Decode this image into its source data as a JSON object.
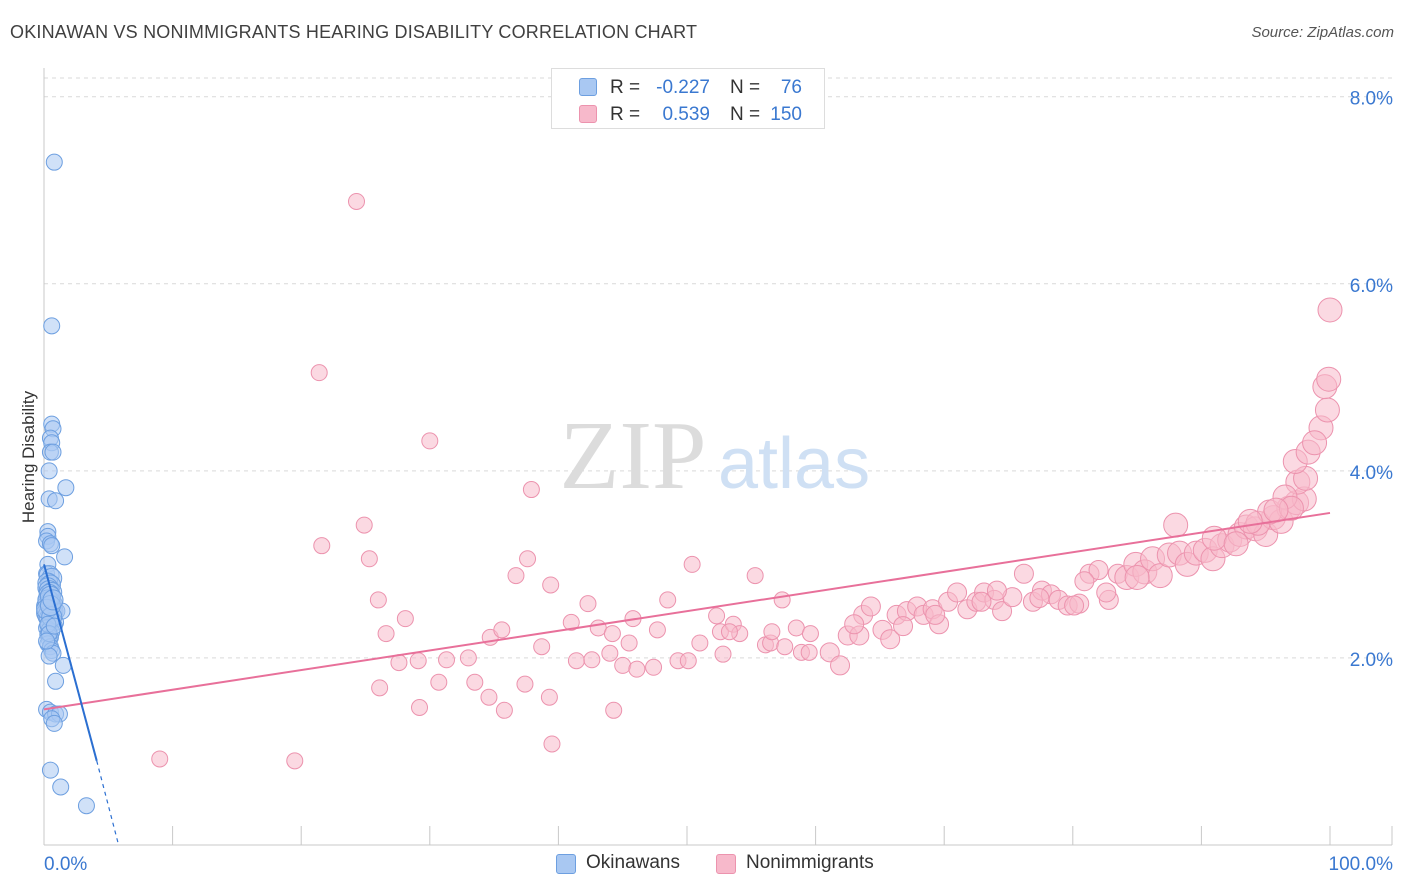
{
  "header": {
    "title": "OKINAWAN VS NONIMMIGRANTS HEARING DISABILITY CORRELATION CHART",
    "source": "Source: ZipAtlas.com"
  },
  "watermark": {
    "zip": "ZIP",
    "atlas": "atlas"
  },
  "legend": {
    "rows": [
      {
        "series": "Okinawans",
        "r_label": "R =",
        "r_value": "-0.227",
        "n_label": "N =",
        "n_value": "76"
      },
      {
        "series": "Nonimmigrants",
        "r_label": "R =",
        "r_value": "0.539",
        "n_label": "N =",
        "n_value": "150"
      }
    ]
  },
  "colors": {
    "okinawans_fill": "#a9c8f2",
    "okinawans_stroke": "#6d9fe0",
    "okinawans_line": "#2b6fd1",
    "nonimmigrants_fill": "#f7b9cb",
    "nonimmigrants_stroke": "#ec93ae",
    "nonimmigrants_line": "#e8709a",
    "axis_label": "#3a78d0",
    "grid": "#d9d9d9"
  },
  "chart_data": {
    "type": "scatter",
    "title": "OKINAWAN VS NONIMMIGRANTS HEARING DISABILITY CORRELATION CHART",
    "xlabel": "",
    "ylabel": "Hearing Disability",
    "xlim": [
      0,
      100
    ],
    "ylim": [
      0,
      8.2
    ],
    "x_tick_labels": {
      "min": "0.0%",
      "max": "100.0%"
    },
    "y_ticks": [
      {
        "value": 2.0,
        "label": "2.0%"
      },
      {
        "value": 4.0,
        "label": "4.0%"
      },
      {
        "value": 6.0,
        "label": "6.0%"
      },
      {
        "value": 8.0,
        "label": "8.0%"
      }
    ],
    "grid": true,
    "legend_position": "top-center",
    "series": [
      {
        "name": "Okinawans",
        "R": -0.227,
        "N": 76,
        "trend": {
          "x0": 0.0,
          "y0": 3.0,
          "x1": 4.1,
          "y1": 0.9,
          "dash_to_x": 5.8,
          "dash_to_y": 0.0
        },
        "points": [
          [
            0.8,
            7.3
          ],
          [
            0.6,
            5.55
          ],
          [
            0.6,
            4.5
          ],
          [
            0.7,
            4.45
          ],
          [
            0.5,
            4.35
          ],
          [
            0.6,
            4.3
          ],
          [
            0.5,
            4.2
          ],
          [
            0.7,
            4.2
          ],
          [
            0.4,
            4.0
          ],
          [
            1.7,
            3.82
          ],
          [
            0.4,
            3.7
          ],
          [
            0.9,
            3.68
          ],
          [
            0.3,
            3.35
          ],
          [
            0.3,
            3.3
          ],
          [
            0.2,
            3.25
          ],
          [
            0.5,
            3.22
          ],
          [
            0.6,
            3.2
          ],
          [
            1.6,
            3.08
          ],
          [
            0.3,
            3.0
          ],
          [
            0.2,
            2.9
          ],
          [
            0.4,
            2.88
          ],
          [
            0.6,
            2.85
          ],
          [
            0.3,
            2.8
          ],
          [
            0.5,
            2.78
          ],
          [
            0.3,
            2.75
          ],
          [
            0.4,
            2.72
          ],
          [
            0.6,
            2.7
          ],
          [
            0.4,
            2.68
          ],
          [
            0.3,
            2.6
          ],
          [
            0.5,
            2.6
          ],
          [
            0.8,
            2.58
          ],
          [
            0.2,
            2.55
          ],
          [
            0.4,
            2.52
          ],
          [
            0.6,
            2.5
          ],
          [
            0.7,
            2.5
          ],
          [
            1.0,
            2.5
          ],
          [
            1.4,
            2.5
          ],
          [
            0.2,
            2.48
          ],
          [
            0.3,
            2.45
          ],
          [
            0.4,
            2.42
          ],
          [
            0.5,
            2.4
          ],
          [
            0.7,
            2.4
          ],
          [
            0.9,
            2.38
          ],
          [
            0.3,
            2.35
          ],
          [
            0.2,
            2.32
          ],
          [
            0.4,
            2.3
          ],
          [
            0.6,
            2.28
          ],
          [
            0.3,
            2.25
          ],
          [
            0.5,
            2.22
          ],
          [
            0.4,
            2.2
          ],
          [
            0.3,
            2.15
          ],
          [
            0.5,
            2.12
          ],
          [
            0.6,
            2.08
          ],
          [
            0.7,
            2.05
          ],
          [
            0.4,
            2.02
          ],
          [
            1.5,
            1.92
          ],
          [
            0.9,
            1.75
          ],
          [
            0.2,
            1.45
          ],
          [
            0.5,
            1.42
          ],
          [
            0.9,
            1.4
          ],
          [
            1.2,
            1.4
          ],
          [
            0.6,
            1.35
          ],
          [
            0.8,
            1.3
          ],
          [
            0.5,
            0.8
          ],
          [
            1.3,
            0.62
          ],
          [
            3.3,
            0.42
          ],
          [
            0.3,
            2.62
          ],
          [
            0.5,
            2.66
          ],
          [
            0.2,
            2.52
          ],
          [
            0.6,
            2.44
          ],
          [
            0.3,
            2.36
          ],
          [
            0.4,
            2.26
          ],
          [
            0.8,
            2.34
          ],
          [
            0.2,
            2.18
          ],
          [
            0.5,
            2.56
          ],
          [
            0.7,
            2.62
          ]
        ]
      },
      {
        "name": "Nonimmigrants",
        "R": 0.539,
        "N": 150,
        "trend": {
          "x0": 0.0,
          "y0": 1.45,
          "x1": 100.0,
          "y1": 3.55
        },
        "points": [
          [
            24.3,
            6.88
          ],
          [
            21.4,
            5.05
          ],
          [
            30.0,
            4.32
          ],
          [
            37.9,
            3.8
          ],
          [
            24.9,
            3.42
          ],
          [
            21.6,
            3.2
          ],
          [
            25.3,
            3.06
          ],
          [
            37.6,
            3.06
          ],
          [
            50.4,
            3.0
          ],
          [
            55.3,
            2.88
          ],
          [
            36.7,
            2.88
          ],
          [
            39.4,
            2.78
          ],
          [
            26.0,
            2.62
          ],
          [
            42.3,
            2.58
          ],
          [
            48.5,
            2.62
          ],
          [
            57.4,
            2.62
          ],
          [
            28.1,
            2.42
          ],
          [
            45.8,
            2.42
          ],
          [
            52.3,
            2.45
          ],
          [
            26.6,
            2.26
          ],
          [
            34.7,
            2.22
          ],
          [
            35.6,
            2.3
          ],
          [
            41.0,
            2.38
          ],
          [
            43.1,
            2.32
          ],
          [
            44.2,
            2.26
          ],
          [
            47.7,
            2.3
          ],
          [
            52.6,
            2.28
          ],
          [
            53.6,
            2.36
          ],
          [
            54.1,
            2.26
          ],
          [
            58.5,
            2.32
          ],
          [
            59.6,
            2.26
          ],
          [
            38.7,
            2.12
          ],
          [
            45.5,
            2.16
          ],
          [
            51.0,
            2.16
          ],
          [
            52.8,
            2.04
          ],
          [
            56.1,
            2.14
          ],
          [
            56.5,
            2.16
          ],
          [
            57.6,
            2.12
          ],
          [
            58.9,
            2.06
          ],
          [
            62.5,
            2.24
          ],
          [
            63.4,
            2.24
          ],
          [
            27.6,
            1.95
          ],
          [
            29.1,
            1.97
          ],
          [
            31.3,
            1.98
          ],
          [
            33.0,
            2.0
          ],
          [
            41.4,
            1.97
          ],
          [
            42.6,
            1.98
          ],
          [
            44.0,
            2.05
          ],
          [
            45.0,
            1.92
          ],
          [
            46.1,
            1.88
          ],
          [
            47.4,
            1.9
          ],
          [
            49.3,
            1.97
          ],
          [
            50.1,
            1.97
          ],
          [
            53.3,
            2.28
          ],
          [
            56.6,
            2.28
          ],
          [
            59.5,
            2.06
          ],
          [
            61.1,
            2.06
          ],
          [
            61.9,
            1.92
          ],
          [
            26.1,
            1.68
          ],
          [
            30.7,
            1.74
          ],
          [
            33.5,
            1.74
          ],
          [
            37.4,
            1.72
          ],
          [
            39.3,
            1.58
          ],
          [
            34.6,
            1.58
          ],
          [
            29.2,
            1.47
          ],
          [
            35.8,
            1.44
          ],
          [
            44.3,
            1.44
          ],
          [
            39.5,
            1.08
          ],
          [
            9.0,
            0.92
          ],
          [
            19.5,
            0.9
          ],
          [
            63.7,
            2.46
          ],
          [
            63.0,
            2.36
          ],
          [
            64.3,
            2.55
          ],
          [
            65.2,
            2.3
          ],
          [
            65.8,
            2.2
          ],
          [
            66.3,
            2.46
          ],
          [
            67.1,
            2.5
          ],
          [
            67.9,
            2.55
          ],
          [
            68.4,
            2.46
          ],
          [
            69.1,
            2.52
          ],
          [
            69.6,
            2.36
          ],
          [
            70.3,
            2.6
          ],
          [
            71.0,
            2.7
          ],
          [
            71.8,
            2.52
          ],
          [
            72.5,
            2.6
          ],
          [
            73.1,
            2.7
          ],
          [
            73.9,
            2.62
          ],
          [
            74.5,
            2.5
          ],
          [
            75.3,
            2.65
          ],
          [
            76.2,
            2.9
          ],
          [
            76.9,
            2.6
          ],
          [
            77.6,
            2.72
          ],
          [
            78.3,
            2.68
          ],
          [
            78.9,
            2.62
          ],
          [
            79.6,
            2.56
          ],
          [
            80.5,
            2.58
          ],
          [
            81.3,
            2.9
          ],
          [
            82.0,
            2.94
          ],
          [
            82.8,
            2.62
          ],
          [
            83.5,
            2.9
          ],
          [
            84.2,
            2.86
          ],
          [
            84.9,
            3.0
          ],
          [
            85.6,
            2.92
          ],
          [
            86.2,
            3.06
          ],
          [
            86.8,
            2.88
          ],
          [
            87.5,
            3.1
          ],
          [
            88.3,
            3.12
          ],
          [
            88.9,
            3.0
          ],
          [
            89.6,
            3.12
          ],
          [
            90.3,
            3.15
          ],
          [
            90.9,
            3.06
          ],
          [
            91.6,
            3.2
          ],
          [
            92.2,
            3.26
          ],
          [
            93.0,
            3.32
          ],
          [
            93.5,
            3.4
          ],
          [
            94.2,
            3.38
          ],
          [
            95.0,
            3.32
          ],
          [
            95.6,
            3.5
          ],
          [
            96.2,
            3.46
          ],
          [
            96.8,
            3.6
          ],
          [
            97.4,
            3.66
          ],
          [
            98.0,
            3.7
          ],
          [
            94.4,
            3.44
          ],
          [
            95.3,
            3.56
          ],
          [
            97.5,
            3.88
          ],
          [
            98.1,
            3.92
          ],
          [
            97.3,
            4.1
          ],
          [
            98.3,
            4.2
          ],
          [
            99.3,
            4.46
          ],
          [
            99.8,
            4.65
          ],
          [
            99.6,
            4.9
          ],
          [
            99.9,
            4.98
          ],
          [
            100.0,
            5.72
          ],
          [
            74.1,
            2.72
          ],
          [
            77.4,
            2.64
          ],
          [
            80.1,
            2.56
          ],
          [
            82.6,
            2.7
          ],
          [
            88.0,
            3.42
          ],
          [
            91.0,
            3.28
          ],
          [
            92.7,
            3.22
          ],
          [
            72.9,
            2.6
          ],
          [
            69.3,
            2.46
          ],
          [
            66.8,
            2.34
          ],
          [
            93.8,
            3.46
          ],
          [
            96.5,
            3.72
          ],
          [
            98.8,
            4.3
          ],
          [
            97.0,
            3.6
          ],
          [
            95.8,
            3.58
          ],
          [
            80.9,
            2.82
          ],
          [
            85.0,
            2.86
          ]
        ]
      }
    ]
  }
}
